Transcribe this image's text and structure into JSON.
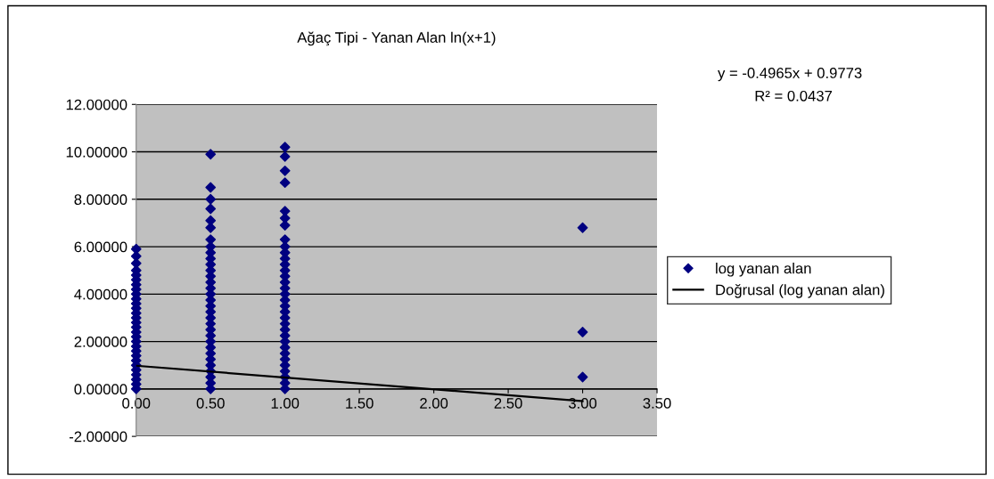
{
  "chart_data": {
    "type": "scatter",
    "title": "Ağaç Tipi - Yanan Alan ln(x+1)",
    "annotations": [
      "y = -0.4965x + 0.9773",
      "R² = 0.0437"
    ],
    "series": [
      {
        "name": "log yanan alan",
        "color": "#000080",
        "marker": "diamond",
        "x": [
          0,
          0,
          0,
          0,
          0,
          0,
          0,
          0,
          0,
          0,
          0,
          0,
          0,
          0,
          0,
          0,
          0,
          0,
          0,
          0,
          0,
          0,
          0,
          0,
          0,
          0,
          0,
          0,
          0,
          0.5,
          0.5,
          0.5,
          0.5,
          0.5,
          0.5,
          0.5,
          0.5,
          0.5,
          0.5,
          0.5,
          0.5,
          0.5,
          0.5,
          0.5,
          0.5,
          0.5,
          0.5,
          0.5,
          0.5,
          0.5,
          0.5,
          0.5,
          0.5,
          0.5,
          0.5,
          0.5,
          0.5,
          0.5,
          0.5,
          0.5,
          0.5,
          1,
          1,
          1,
          1,
          1,
          1,
          1,
          1,
          1,
          1,
          1,
          1,
          1,
          1,
          1,
          1,
          1,
          1,
          1,
          1,
          1,
          1,
          1,
          1,
          1,
          1,
          1,
          1,
          1,
          1,
          1,
          1,
          1,
          3,
          3,
          3
        ],
        "values": [
          0,
          0.2,
          0.4,
          0.6,
          0.8,
          1,
          1.2,
          1.4,
          1.6,
          1.8,
          2,
          2.2,
          2.4,
          2.6,
          2.8,
          3,
          3.2,
          3.4,
          3.6,
          3.8,
          4,
          4.2,
          4.4,
          4.6,
          4.8,
          5,
          5.3,
          5.6,
          5.9,
          0,
          0.25,
          0.5,
          0.75,
          1,
          1.25,
          1.5,
          1.75,
          2,
          2.25,
          2.5,
          2.75,
          3,
          3.25,
          3.5,
          3.75,
          4,
          4.25,
          4.5,
          4.75,
          5,
          5.25,
          5.5,
          5.75,
          6,
          6.3,
          6.8,
          7.1,
          7.6,
          8,
          8.5,
          9.9,
          0,
          0.25,
          0.5,
          0.75,
          1,
          1.25,
          1.5,
          1.75,
          2,
          2.25,
          2.5,
          2.75,
          3,
          3.25,
          3.5,
          3.75,
          4,
          4.25,
          4.5,
          4.75,
          5,
          5.25,
          5.5,
          5.75,
          6,
          6.3,
          6.9,
          7.2,
          7.5,
          8.7,
          9.2,
          9.8,
          10.2,
          0.5,
          2.4,
          6.8
        ]
      },
      {
        "name": "Doğrusal (log yanan alan)",
        "type": "line",
        "color": "#000000",
        "line_style": "solid",
        "x": [
          0,
          3
        ],
        "values": [
          0.98,
          -0.51
        ]
      }
    ],
    "xlim": [
      0,
      3.5
    ],
    "xticks": [
      {
        "value": 0,
        "label": "0.00"
      },
      {
        "value": 0.5,
        "label": "0.50"
      },
      {
        "value": 1,
        "label": "1.00"
      },
      {
        "value": 1.5,
        "label": "1.50"
      },
      {
        "value": 2,
        "label": "2.00"
      },
      {
        "value": 2.5,
        "label": "2.50"
      },
      {
        "value": 3,
        "label": "3.00"
      },
      {
        "value": 3.5,
        "label": "3.50"
      }
    ],
    "ylim": [
      -2,
      12
    ],
    "yticks": [
      {
        "value": -2,
        "label": "-2.00000"
      },
      {
        "value": 0,
        "label": "0.00000"
      },
      {
        "value": 2,
        "label": "2.00000"
      },
      {
        "value": 4,
        "label": "4.00000"
      },
      {
        "value": 6,
        "label": "6.00000"
      },
      {
        "value": 8,
        "label": "8.00000"
      },
      {
        "value": 10,
        "label": "10.00000"
      },
      {
        "value": 12,
        "label": "12.00000"
      }
    ],
    "grid": "y",
    "legend": "right"
  }
}
